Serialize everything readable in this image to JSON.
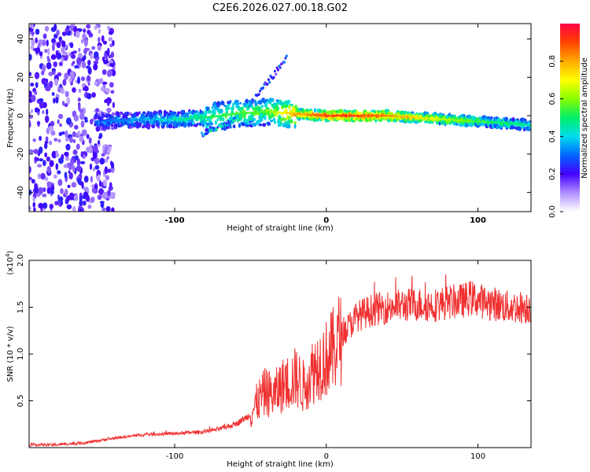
{
  "title": "C2E6.2026.027.00.18.G02",
  "chart_data": [
    {
      "type": "heatmap",
      "title": "C2E6.2026.027.00.18.G02",
      "xlabel": "Height of straight line (km)",
      "ylabel": "Frequency (Hz)",
      "xlim": [
        -196,
        135
      ],
      "ylim": [
        -50,
        48
      ],
      "xticks": [
        -100,
        0,
        100
      ],
      "yticks": [
        -40,
        -20,
        0,
        20,
        40
      ],
      "xtick_labels": [
        "-100",
        "0",
        "100"
      ],
      "ytick_labels": [
        "-40",
        "-20",
        "0",
        "20",
        "40"
      ],
      "colorbar": {
        "label": "Normalized spectral amplitude",
        "range": [
          0,
          1
        ],
        "ticks": [
          0.0,
          0.2,
          0.4,
          0.6,
          0.8
        ],
        "tick_labels": [
          "0.0",
          "0.2",
          "0.4",
          "0.6",
          "0.8"
        ],
        "colormap": "rainbow"
      },
      "ridge": {
        "description_free_points_x": [
          -150,
          -120,
          -100,
          -80,
          -60,
          -40,
          -20,
          0,
          20,
          40,
          60,
          80,
          100,
          120,
          135
        ],
        "frequency_hz": [
          -3,
          -2,
          -2,
          -1,
          1,
          2,
          1,
          0,
          0,
          0,
          -1,
          -2,
          -3,
          -4,
          -5
        ],
        "amplitude": [
          0.3,
          0.35,
          0.45,
          0.5,
          0.55,
          0.55,
          0.8,
          0.92,
          0.92,
          0.85,
          0.75,
          0.65,
          0.55,
          0.5,
          0.45
        ]
      }
    },
    {
      "type": "line",
      "xlabel": "Height of straight line (km)",
      "ylabel": "SNR (10 * v/v)",
      "multiplier_label": "(x10",
      "multiplier_exp": "4",
      "multiplier_close": ")",
      "xlim": [
        -196,
        135
      ],
      "ylim": [
        0,
        20000
      ],
      "xticks": [
        -100,
        0,
        100
      ],
      "yticks": [
        5000,
        10000,
        15000,
        20000
      ],
      "xtick_labels": [
        "-100",
        "0",
        "100"
      ],
      "ytick_labels": [
        "0.5",
        "1.0",
        "1.5",
        "2.0"
      ],
      "color": "#f03030",
      "series": [
        {
          "name": "SNR",
          "x": [
            -196,
            -180,
            -160,
            -140,
            -120,
            -100,
            -80,
            -70,
            -60,
            -50,
            -45,
            -40,
            -35,
            -30,
            -25,
            -20,
            -15,
            -10,
            -5,
            0,
            5,
            10,
            20,
            30,
            40,
            50,
            60,
            70,
            80,
            90,
            95,
            100,
            105,
            110,
            120,
            135
          ],
          "y": [
            300,
            300,
            500,
            1000,
            1400,
            1500,
            1700,
            2000,
            2500,
            3500,
            5000,
            6000,
            5500,
            6500,
            7000,
            7500,
            6500,
            8000,
            9000,
            9500,
            10500,
            12000,
            14000,
            14700,
            15000,
            15200,
            15300,
            15200,
            15500,
            15700,
            16000,
            15800,
            15500,
            15400,
            15000,
            15000
          ]
        }
      ]
    }
  ]
}
